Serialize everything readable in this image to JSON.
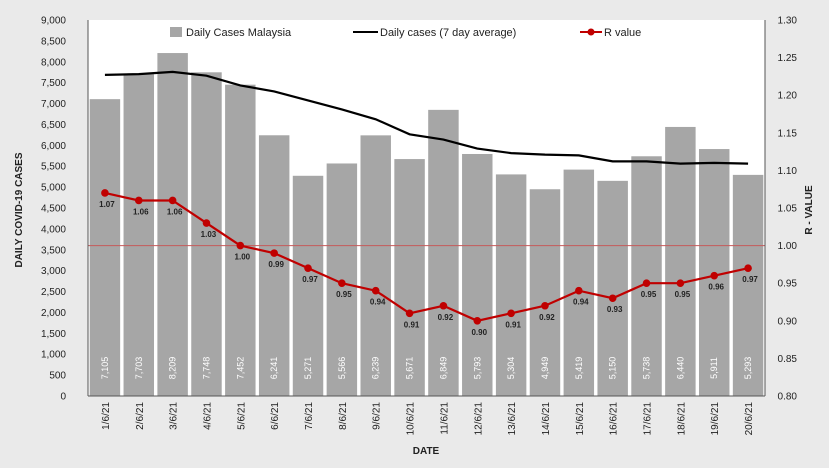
{
  "chart_data": {
    "type": "bar",
    "title": "",
    "xlabel": "DATE",
    "ylabel": "DAILY COVID-19 CASES",
    "y2label": "R - VALUE",
    "ylim": [
      0,
      9000
    ],
    "y2lim": [
      0.8,
      1.3
    ],
    "yticks": [
      "0",
      "500",
      "1,000",
      "1,500",
      "2,000",
      "2,500",
      "3,000",
      "3,500",
      "4,000",
      "4,500",
      "5,000",
      "5,500",
      "6,000",
      "6,500",
      "7,000",
      "7,500",
      "8,000",
      "8,500",
      "9,000"
    ],
    "y2ticks": [
      "0.80",
      "0.85",
      "0.90",
      "0.95",
      "1.00",
      "1.05",
      "1.10",
      "1.15",
      "1.20",
      "1.25",
      "1.30"
    ],
    "categories": [
      "1/6/21",
      "2/6/21",
      "3/6/21",
      "4/6/21",
      "5/6/21",
      "6/6/21",
      "7/6/21",
      "8/6/21",
      "9/6/21",
      "10/6/21",
      "11/6/21",
      "12/6/21",
      "13/6/21",
      "14/6/21",
      "15/6/21",
      "16/6/21",
      "17/6/21",
      "18/6/21",
      "19/6/21",
      "20/6/21"
    ],
    "series": [
      {
        "name": "Daily Cases Malaysia",
        "type": "bar",
        "color": "#a6a6a6",
        "values": [
          7105,
          7703,
          8209,
          7748,
          7452,
          6241,
          5271,
          5566,
          6239,
          5671,
          6849,
          5793,
          5304,
          4949,
          5419,
          5150,
          5738,
          6440,
          5911,
          5293
        ],
        "labels": [
          "7,105",
          "7,703",
          "8,209",
          "7,748",
          "7,452",
          "6,241",
          "5,271",
          "5,566",
          "6,239",
          "5,671",
          "6,849",
          "5,793",
          "5,304",
          "4,949",
          "5,419",
          "5,150",
          "5,738",
          "6,440",
          "5,911",
          "5,293"
        ]
      },
      {
        "name": "Daily cases (7 day average)",
        "type": "line",
        "axis": "right",
        "color": "#000000",
        "values": [
          1.227,
          1.228,
          1.231,
          1.226,
          1.213,
          1.205,
          1.193,
          1.181,
          1.168,
          1.148,
          1.141,
          1.129,
          1.123,
          1.121,
          1.12,
          1.112,
          1.112,
          1.109,
          1.11,
          1.109
        ]
      },
      {
        "name": "R value",
        "type": "line",
        "axis": "right",
        "color": "#c00000",
        "values": [
          1.07,
          1.06,
          1.06,
          1.03,
          1.0,
          0.99,
          0.97,
          0.95,
          0.94,
          0.91,
          0.92,
          0.9,
          0.91,
          0.92,
          0.94,
          0.93,
          0.95,
          0.95,
          0.96,
          0.97
        ],
        "labels": [
          "1.07",
          "1.06",
          "1.06",
          "1.03",
          "1.00",
          "0.99",
          "0.97",
          "0.95",
          "0.94",
          "0.91",
          "0.92",
          "0.90",
          "0.91",
          "0.92",
          "0.94",
          "0.93",
          "0.95",
          "0.95",
          "0.96",
          "0.97"
        ]
      }
    ],
    "reference_line": {
      "axis": "right",
      "value": 1.0,
      "color": "#c55a5a"
    },
    "legend_position": "top"
  }
}
